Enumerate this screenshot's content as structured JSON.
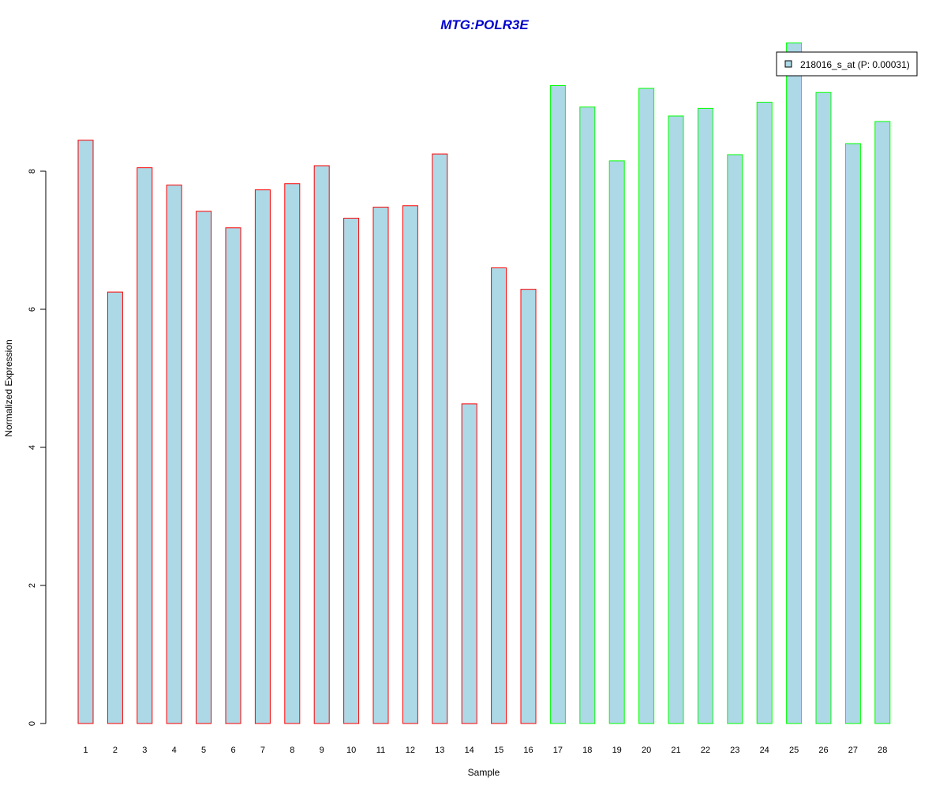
{
  "chart_data": {
    "type": "bar",
    "title": "MTG:POLR3E",
    "xlabel": "Sample",
    "ylabel": "Normalized Expression",
    "ylim": [
      0,
      10
    ],
    "yticks": [
      0,
      2,
      4,
      6,
      8
    ],
    "grid": false,
    "legend_position": "top-right",
    "legend": [
      {
        "label": "218016_s_at (P: 0.00031)",
        "fill": "#add8e6"
      }
    ],
    "categories": [
      "1",
      "2",
      "3",
      "4",
      "5",
      "6",
      "7",
      "8",
      "9",
      "10",
      "11",
      "12",
      "13",
      "14",
      "15",
      "16",
      "17",
      "18",
      "19",
      "20",
      "21",
      "22",
      "23",
      "24",
      "25",
      "26",
      "27",
      "28"
    ],
    "values": [
      8.45,
      6.25,
      8.05,
      7.8,
      7.42,
      7.18,
      7.73,
      7.82,
      8.08,
      7.32,
      7.48,
      7.5,
      8.25,
      4.63,
      6.6,
      6.29,
      9.24,
      8.93,
      8.15,
      9.2,
      8.8,
      8.91,
      8.24,
      9.0,
      9.86,
      9.14,
      8.4,
      8.72
    ],
    "groups": [
      1,
      1,
      1,
      1,
      1,
      1,
      1,
      1,
      1,
      1,
      1,
      1,
      1,
      1,
      1,
      1,
      2,
      2,
      2,
      2,
      2,
      2,
      2,
      2,
      2,
      2,
      2,
      2
    ],
    "colors": {
      "bar_fill": "#add8e6",
      "group_1_border": "#ff0000",
      "group_2_border": "#00ff00",
      "title": "#0000cc",
      "axis": "#000000"
    }
  }
}
